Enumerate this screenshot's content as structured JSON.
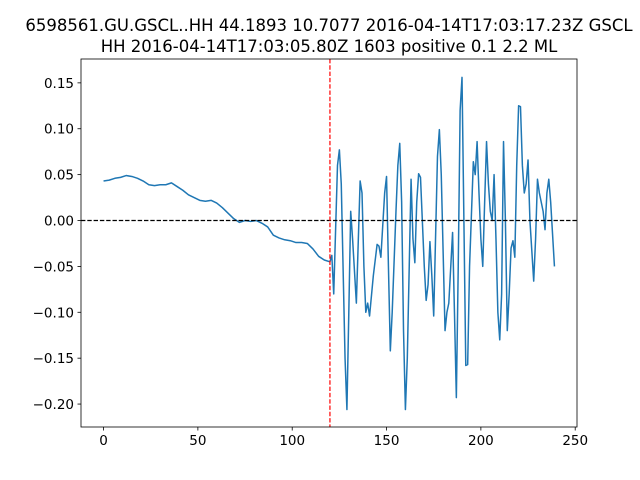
{
  "chart_data": {
    "type": "line",
    "title": [
      "6598561.GU.GSCL..HH 44.1893 10.7077 2016-04-14T17:03:17.23Z GSCL",
      "HH 2016-04-14T17:03:05.80Z 1603 positive 0.1 2.2 ML"
    ],
    "x": [
      0,
      3,
      6,
      9,
      12,
      15,
      18,
      21,
      24,
      27,
      30,
      33,
      36,
      39,
      42,
      45,
      48,
      51,
      54,
      57,
      60,
      63,
      66,
      69,
      72,
      75,
      78,
      81,
      84,
      87,
      90,
      93,
      96,
      99,
      102,
      105,
      108,
      111,
      114,
      117,
      120,
      121,
      122,
      124,
      125,
      126,
      128,
      129,
      130,
      131,
      132,
      134,
      136,
      137,
      138,
      139,
      140,
      141,
      143,
      145,
      146,
      147,
      149,
      150,
      151,
      152,
      153,
      155,
      156,
      157,
      158,
      159,
      160,
      161,
      163,
      164,
      165,
      166,
      167,
      168,
      170,
      171,
      172,
      173,
      174,
      175,
      177,
      178,
      179,
      181,
      182,
      183,
      185,
      186,
      187,
      188,
      189,
      190,
      191,
      192,
      193,
      194,
      196,
      197,
      198,
      199,
      200,
      201,
      202,
      203,
      204,
      205,
      206,
      207,
      208,
      209,
      210,
      211,
      212,
      213,
      214,
      215,
      216,
      217,
      218,
      219,
      220,
      221,
      222,
      223,
      224,
      225,
      226,
      228,
      229,
      230,
      231,
      233,
      234,
      235,
      236,
      237,
      239
    ],
    "series": [
      {
        "color": "#1f77b4",
        "values": [
          0.043,
          0.044,
          0.046,
          0.047,
          0.049,
          0.048,
          0.046,
          0.043,
          0.039,
          0.038,
          0.039,
          0.039,
          0.041,
          0.037,
          0.033,
          0.028,
          0.025,
          0.022,
          0.021,
          0.022,
          0.019,
          0.014,
          0.008,
          0.002,
          -0.002,
          0.0,
          -0.001,
          0.0,
          -0.003,
          -0.007,
          -0.016,
          -0.019,
          -0.021,
          -0.022,
          -0.024,
          -0.024,
          -0.025,
          -0.031,
          -0.039,
          -0.043,
          -0.045,
          -0.038,
          -0.08,
          0.06,
          0.077,
          0.04,
          -0.15,
          -0.206,
          -0.1,
          0.01,
          -0.02,
          -0.09,
          0.043,
          0.03,
          -0.05,
          -0.1,
          -0.09,
          -0.104,
          -0.06,
          -0.026,
          -0.028,
          -0.04,
          0.03,
          0.048,
          -0.05,
          -0.142,
          -0.1,
          0.01,
          0.06,
          0.084,
          0.02,
          -0.12,
          -0.206,
          -0.15,
          0.045,
          -0.02,
          -0.046,
          0.02,
          0.051,
          0.047,
          -0.05,
          -0.087,
          -0.07,
          -0.023,
          -0.06,
          -0.104,
          0.07,
          0.099,
          0.05,
          -0.12,
          -0.1,
          -0.09,
          -0.013,
          -0.1,
          -0.193,
          -0.05,
          0.12,
          0.156,
          0.0,
          -0.158,
          -0.157,
          -0.05,
          0.064,
          0.05,
          0.086,
          0.03,
          -0.02,
          -0.05,
          0.02,
          0.086,
          0.04,
          0.01,
          0.0,
          0.05,
          -0.02,
          -0.1,
          -0.13,
          -0.08,
          0.086,
          0.0,
          -0.12,
          -0.08,
          -0.03,
          -0.022,
          -0.04,
          0.06,
          0.125,
          0.124,
          0.06,
          0.03,
          0.04,
          0.066,
          0.0,
          -0.066,
          -0.02,
          0.045,
          0.03,
          0.01,
          -0.01,
          0.03,
          0.045,
          0.02,
          -0.05
        ]
      }
    ],
    "xlim": [
      -11.95,
      250.95
    ],
    "xticks": [
      0,
      50,
      100,
      150,
      200,
      250
    ],
    "ylim": [
      -0.225,
      0.176
    ],
    "yticks": [
      {
        "value": -0.2,
        "label": "−0.20"
      },
      {
        "value": -0.15,
        "label": "−0.15"
      },
      {
        "value": -0.1,
        "label": "−0.10"
      },
      {
        "value": -0.05,
        "label": "−0.05"
      },
      {
        "value": 0,
        "label": "0.00"
      },
      {
        "value": 0.05,
        "label": "0.05"
      },
      {
        "value": 0.1,
        "label": "0.10"
      },
      {
        "value": 0.15,
        "label": "0.15"
      }
    ],
    "hline": {
      "value": 0,
      "color": "#000000"
    },
    "vline": {
      "value": 120,
      "color": "#ff0000"
    }
  }
}
